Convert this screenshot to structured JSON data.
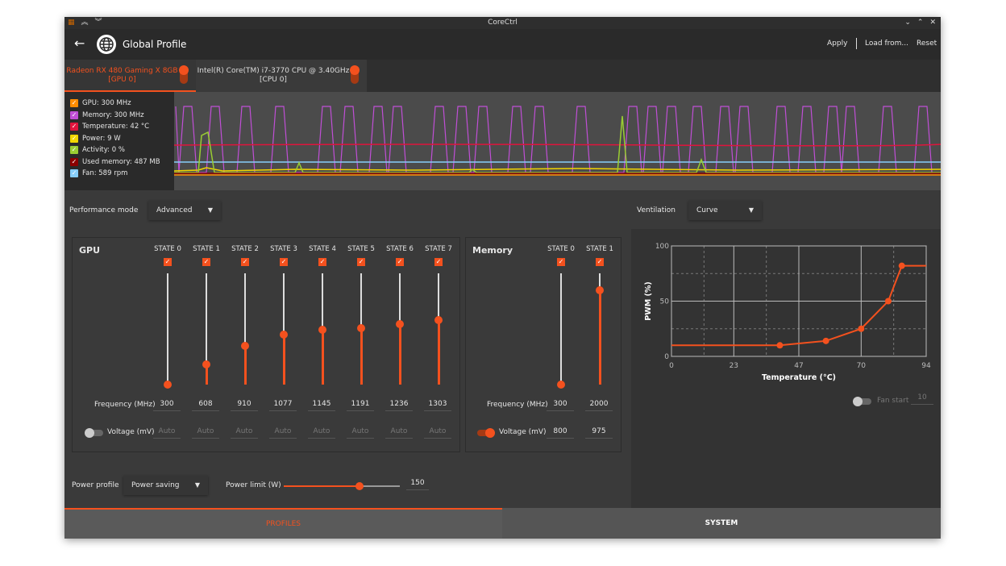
{
  "window": {
    "title": "CoreCtrl"
  },
  "header": {
    "title": "Global Profile",
    "apply": "Apply",
    "load_from": "Load from...",
    "reset": "Reset"
  },
  "tabs": [
    {
      "label": "Radeon RX 480 Gaming X 8GB",
      "sub": "[GPU 0]",
      "active": true
    },
    {
      "label": "Intel(R) Core(TM) i7-3770 CPU @ 3.40GHz",
      "sub": "[CPU 0]",
      "active": false
    }
  ],
  "legend": [
    {
      "label": "GPU: 300 MHz",
      "color": "#ff8c00"
    },
    {
      "label": "Memory: 300 MHz",
      "color": "#c04fd6"
    },
    {
      "label": "Temperature: 42 °C",
      "color": "#e0143c"
    },
    {
      "label": "Power: 9 W",
      "color": "#f2d600"
    },
    {
      "label": "Activity: 0 %",
      "color": "#9acd32"
    },
    {
      "label": "Used memory: 487 MB",
      "color": "#8b0000"
    },
    {
      "label": "Fan: 589 rpm",
      "color": "#87cefa"
    }
  ],
  "performance": {
    "label": "Performance mode",
    "value": "Advanced"
  },
  "gpu": {
    "title": "GPU",
    "freq_label": "Frequency (MHz)",
    "volt_label": "Voltage (mV)",
    "voltage_enabled": false,
    "states": [
      {
        "name": "STATE 0",
        "freq": "300",
        "volt": "Auto",
        "level": 0
      },
      {
        "name": "STATE 1",
        "freq": "608",
        "volt": "Auto",
        "level": 0.18
      },
      {
        "name": "STATE 2",
        "freq": "910",
        "volt": "Auto",
        "level": 0.35
      },
      {
        "name": "STATE 3",
        "freq": "1077",
        "volt": "Auto",
        "level": 0.45
      },
      {
        "name": "STATE 4",
        "freq": "1145",
        "volt": "Auto",
        "level": 0.49
      },
      {
        "name": "STATE 5",
        "freq": "1191",
        "volt": "Auto",
        "level": 0.51
      },
      {
        "name": "STATE 6",
        "freq": "1236",
        "volt": "Auto",
        "level": 0.54
      },
      {
        "name": "STATE 7",
        "freq": "1303",
        "volt": "Auto",
        "level": 0.58
      }
    ]
  },
  "memory": {
    "title": "Memory",
    "freq_label": "Frequency (MHz)",
    "volt_label": "Voltage (mV)",
    "voltage_enabled": true,
    "states": [
      {
        "name": "STATE 0",
        "freq": "300",
        "volt": "800",
        "level": 0
      },
      {
        "name": "STATE 1",
        "freq": "2000",
        "volt": "975",
        "level": 0.85
      }
    ]
  },
  "power": {
    "profile_label": "Power profile",
    "profile_value": "Power saving",
    "limit_label": "Power limit (W)",
    "limit_value": "150",
    "limit_level": 0.65
  },
  "ventilation": {
    "label": "Ventilation",
    "value": "Curve",
    "fan_start_label": "Fan start",
    "fan_start_value": "10",
    "fan_start_enabled": false
  },
  "chart_data": {
    "type": "line",
    "xlabel": "Temperature (°C)",
    "ylabel": "PWM (%)",
    "xlim": [
      0,
      94
    ],
    "ylim": [
      0,
      100
    ],
    "xticks": [
      "0",
      "23",
      "47",
      "70",
      "94"
    ],
    "yticks": [
      "0",
      "50",
      "100"
    ],
    "grid": true,
    "points": [
      [
        40,
        10
      ],
      [
        57,
        14
      ],
      [
        70,
        25
      ],
      [
        80,
        50
      ],
      [
        85,
        82
      ]
    ],
    "color": "#f4511e"
  },
  "bottom_tabs": [
    {
      "label": "PROFILES",
      "active": true
    },
    {
      "label": "SYSTEM",
      "active": false
    }
  ]
}
